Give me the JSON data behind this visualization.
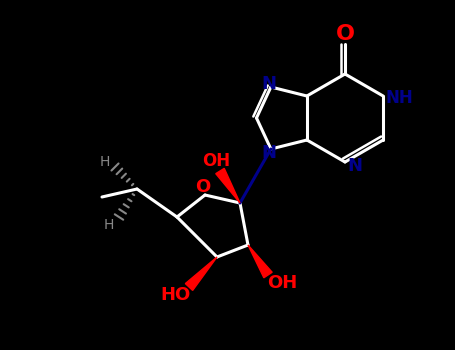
{
  "bg_color": "#000000",
  "figsize": [
    4.55,
    3.5
  ],
  "dpi": 100,
  "blue": "#00008B",
  "red": "#FF0000",
  "gray": "#888888",
  "white": "#FFFFFF"
}
